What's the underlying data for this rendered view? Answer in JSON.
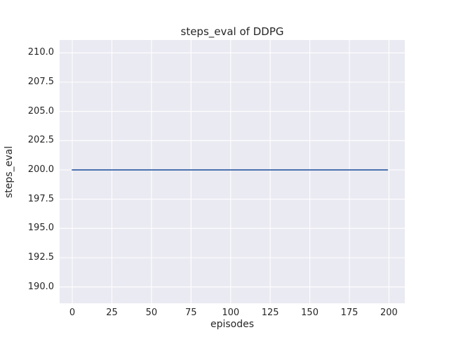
{
  "figure": {
    "background_color": "#ffffff",
    "plot_background_color": "#eaeaf2",
    "grid_color": "#ffffff",
    "text_color": "#262626"
  },
  "chart_data": {
    "type": "line",
    "title": "steps_eval of DDPG",
    "xlabel": "episodes",
    "ylabel": "steps_eval",
    "xlim": [
      -8,
      210
    ],
    "ylim": [
      188.6,
      211.1
    ],
    "xticks": [
      0,
      25,
      50,
      75,
      100,
      125,
      150,
      175,
      200
    ],
    "yticks": [
      190.0,
      192.5,
      195.0,
      197.5,
      200.0,
      202.5,
      205.0,
      207.5,
      210.0
    ],
    "grid": true,
    "legend_position": "none",
    "series": [
      {
        "name": "steps_eval of DDPG",
        "color": "#4c72b0",
        "line_width": 2,
        "points": [
          [
            0,
            200.0
          ],
          [
            199,
            200.0
          ]
        ],
        "note": "constant value 200.0 for every episode from 0 to 199"
      }
    ]
  }
}
